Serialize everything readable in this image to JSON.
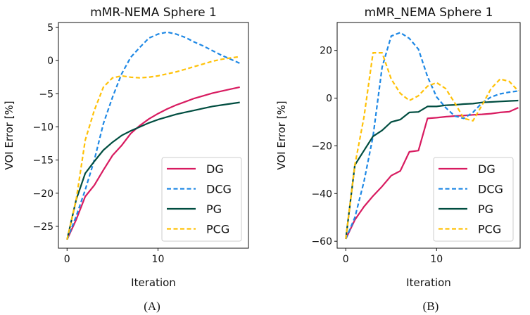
{
  "chart_data": [
    {
      "type": "line",
      "title": "mMR-NEMA Sphere 1",
      "caption": "(A)",
      "xlabel": "Iteration",
      "ylabel": "VOI Error [%]",
      "xlim": [
        -0.95,
        19.95
      ],
      "ylim": [
        -28.3,
        5.75
      ],
      "xticks": [
        0,
        10
      ],
      "yticks": [
        5,
        0,
        -5,
        -10,
        -15,
        -20,
        -25
      ],
      "ytick_labels": [
        "5",
        "0",
        "−5",
        "−10",
        "−15",
        "−20",
        "−25"
      ],
      "legend": "bottom-right",
      "x": [
        0,
        1,
        2,
        3,
        4,
        5,
        6,
        7,
        8,
        9,
        10,
        11,
        12,
        13,
        14,
        15,
        16,
        17,
        18,
        19
      ],
      "series": [
        {
          "name": "DG",
          "color": "#d81b60",
          "dash": false,
          "values": [
            -27,
            -24,
            -20.5,
            -18.8,
            -16.5,
            -14.3,
            -12.8,
            -11,
            -9.8,
            -8.8,
            -8,
            -7.3,
            -6.7,
            -6.2,
            -5.7,
            -5.3,
            -4.9,
            -4.6,
            -4.3,
            -4.0
          ]
        },
        {
          "name": "DCG",
          "color": "#1e88e5",
          "dash": true,
          "values": [
            -27,
            -23.5,
            -19.5,
            -15,
            -9.5,
            -5.5,
            -2,
            0.5,
            2,
            3.4,
            4,
            4.3,
            4,
            3.5,
            2.8,
            2.2,
            1.5,
            0.8,
            0.2,
            -0.4
          ]
        },
        {
          "name": "PG",
          "color": "#004d40",
          "dash": false,
          "values": [
            -27,
            -21,
            -17,
            -15.2,
            -13.5,
            -12.3,
            -11.3,
            -10.6,
            -10,
            -9.4,
            -8.9,
            -8.5,
            -8.1,
            -7.8,
            -7.5,
            -7.2,
            -6.9,
            -6.7,
            -6.5,
            -6.3
          ]
        },
        {
          "name": "PCG",
          "color": "#ffc107",
          "dash": true,
          "values": [
            -27,
            -21,
            -12,
            -7.5,
            -4,
            -2.6,
            -2.3,
            -2.5,
            -2.6,
            -2.5,
            -2.3,
            -2,
            -1.7,
            -1.3,
            -0.9,
            -0.5,
            -0.1,
            0.2,
            0.4,
            0.6
          ]
        }
      ]
    },
    {
      "type": "line",
      "title": "mMR_NEMA Sphere 1",
      "caption": "(B)",
      "xlabel": "Iteration",
      "ylabel": "VOI Error [%]",
      "xlim": [
        -0.95,
        19.2
      ],
      "ylim": [
        -62.9,
        31.7
      ],
      "xticks": [
        0,
        10
      ],
      "yticks": [
        20,
        0,
        -20,
        -40,
        -60
      ],
      "ytick_labels": [
        "20",
        "0",
        "−20",
        "−40",
        "−60"
      ],
      "legend": "bottom-right",
      "x": [
        0,
        1,
        2,
        3,
        4,
        5,
        6,
        7,
        8,
        9,
        10,
        11,
        12,
        13,
        14,
        15,
        16,
        17,
        18,
        19
      ],
      "series": [
        {
          "name": "DG",
          "color": "#d81b60",
          "dash": false,
          "values": [
            -59,
            -51,
            -45.5,
            -41,
            -37,
            -32.5,
            -30.5,
            -22.5,
            -22,
            -8.5,
            -8.2,
            -7.8,
            -7.5,
            -7.3,
            -7,
            -6.8,
            -6.5,
            -6,
            -5.7,
            -4
          ]
        },
        {
          "name": "DCG",
          "color": "#1e88e5",
          "dash": true,
          "values": [
            -59,
            -50,
            -35,
            -16,
            13,
            26,
            27.5,
            25,
            20.5,
            9,
            0.5,
            -4,
            -7.5,
            -8.5,
            -6,
            -2,
            0.5,
            1.8,
            2.5,
            3
          ]
        },
        {
          "name": "PG",
          "color": "#004d40",
          "dash": false,
          "values": [
            -59,
            -28,
            -22,
            -16,
            -13.5,
            -10,
            -9,
            -6,
            -5.8,
            -3.5,
            -3.5,
            -3,
            -2.8,
            -2.5,
            -2.3,
            -1.8,
            -1.6,
            -1.4,
            -1.2,
            -1.0
          ]
        },
        {
          "name": "PCG",
          "color": "#ffc107",
          "dash": true,
          "values": [
            -59,
            -28,
            -8,
            19,
            19,
            8,
            2,
            -1,
            1,
            5,
            6.5,
            4,
            -2,
            -8.5,
            -9.5,
            -3,
            4,
            8,
            7,
            3
          ]
        }
      ]
    }
  ]
}
